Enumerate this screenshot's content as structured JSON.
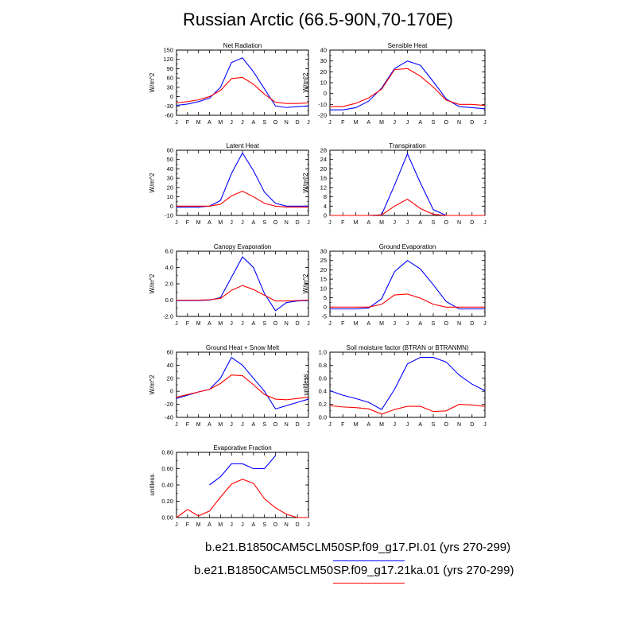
{
  "title": "Russian Arctic (66.5-90N,70-170E)",
  "colors": {
    "series1": "#0000ff",
    "series2": "#ff0000"
  },
  "legend": [
    {
      "label": "b.e21.B1850CAM5CLM50SP.f09_g17.PI.01 (yrs 270-299)",
      "color": "#0000ff"
    },
    {
      "label": "b.e21.B1850CAM5CLM50SP.f09_g17.21ka.01 (yrs 270-299)",
      "color": "#ff0000"
    }
  ],
  "chart_data": [
    {
      "type": "line",
      "title": "Net Radiation",
      "ylabel": "W/m^2",
      "x": [
        "J",
        "F",
        "M",
        "A",
        "M",
        "J",
        "J",
        "A",
        "S",
        "O",
        "N",
        "D",
        "J"
      ],
      "ylim": [
        -60,
        150
      ],
      "yticks": [
        "-60",
        "-30",
        "0",
        "30",
        "60",
        "90",
        "120",
        "150"
      ],
      "ytick_values": [
        -60,
        -30,
        0,
        30,
        60,
        90,
        120,
        150
      ],
      "yminor": 15,
      "series": [
        {
          "values": [
            -28,
            -24,
            -16,
            -5,
            30,
            110,
            125,
            80,
            25,
            -30,
            -35,
            -32,
            -30
          ]
        },
        {
          "values": [
            -20,
            -16,
            -10,
            0,
            20,
            58,
            62,
            40,
            8,
            -18,
            -22,
            -22,
            -20
          ]
        }
      ]
    },
    {
      "type": "line",
      "title": "Sensible Heat",
      "ylabel": "W/m^2",
      "x": [
        "J",
        "F",
        "M",
        "A",
        "M",
        "J",
        "J",
        "A",
        "S",
        "O",
        "N",
        "D",
        "J"
      ],
      "ylim": [
        -20,
        40
      ],
      "yticks": [
        "-20",
        "-10",
        "0",
        "10",
        "20",
        "30",
        "40"
      ],
      "ytick_values": [
        -20,
        -10,
        0,
        10,
        20,
        30,
        40
      ],
      "yminor": 5,
      "series": [
        {
          "values": [
            -15,
            -15,
            -13,
            -7,
            5,
            23,
            30,
            26,
            11,
            -5,
            -12,
            -13,
            -14
          ]
        },
        {
          "values": [
            -12,
            -12,
            -9,
            -4,
            4,
            22,
            23,
            16,
            6,
            -6,
            -10,
            -10,
            -11
          ]
        }
      ]
    },
    {
      "type": "line",
      "title": "Latent Heat",
      "ylabel": "W/m^2",
      "x": [
        "J",
        "F",
        "M",
        "A",
        "M",
        "J",
        "J",
        "A",
        "S",
        "O",
        "N",
        "D",
        "J"
      ],
      "ylim": [
        -10,
        60
      ],
      "yticks": [
        "-10",
        "0",
        "10",
        "20",
        "30",
        "40",
        "50",
        "60"
      ],
      "ytick_values": [
        -10,
        0,
        10,
        20,
        30,
        40,
        50,
        60
      ],
      "yminor": 5,
      "series": [
        {
          "values": [
            -1,
            -1,
            -1,
            0,
            6,
            35,
            57,
            38,
            15,
            3,
            0,
            0,
            0
          ]
        },
        {
          "values": [
            0,
            0,
            0,
            0,
            2,
            11,
            16,
            10,
            3,
            0,
            -1,
            -1,
            -1
          ]
        }
      ]
    },
    {
      "type": "line",
      "title": "Transpiration",
      "ylabel": "W/m^2",
      "x": [
        "J",
        "F",
        "M",
        "A",
        "M",
        "J",
        "J",
        "A",
        "S",
        "O",
        "N",
        "D",
        "J"
      ],
      "ylim": [
        0,
        28
      ],
      "yticks": [
        "0",
        "4",
        "8",
        "12",
        "16",
        "20",
        "24",
        "28"
      ],
      "ytick_values": [
        0,
        4,
        8,
        12,
        16,
        20,
        24,
        28
      ],
      "yminor": 2,
      "series": [
        {
          "values": [
            0,
            0,
            0,
            0,
            0.3,
            13,
            26.5,
            14,
            2.5,
            0,
            0,
            0,
            0
          ]
        },
        {
          "values": [
            0,
            0,
            0,
            0,
            0.2,
            4,
            7,
            3,
            0.5,
            0,
            0,
            0,
            0
          ]
        }
      ]
    },
    {
      "type": "line",
      "title": "Canopy Evaporation",
      "ylabel": "W/m^2",
      "x": [
        "J",
        "F",
        "M",
        "A",
        "M",
        "J",
        "J",
        "A",
        "S",
        "O",
        "N",
        "D",
        "J"
      ],
      "ylim": [
        -2,
        6
      ],
      "yticks": [
        "-2.0",
        "0.0",
        "2.0",
        "4.0",
        "6.0"
      ],
      "ytick_values": [
        -2,
        0,
        2,
        4,
        6
      ],
      "yminor": 1,
      "series": [
        {
          "values": [
            -0.05,
            -0.05,
            -0.05,
            0,
            0.3,
            2.8,
            5.3,
            4.0,
            0.8,
            -1.3,
            -0.3,
            -0.1,
            -0.05
          ]
        },
        {
          "values": [
            0,
            0,
            0,
            0.05,
            0.2,
            1.2,
            1.8,
            1.3,
            0.6,
            -0.1,
            -0.1,
            -0.05,
            0
          ]
        }
      ]
    },
    {
      "type": "line",
      "title": "Ground Evaporation",
      "ylabel": "W/m^2",
      "x": [
        "J",
        "F",
        "M",
        "A",
        "M",
        "J",
        "J",
        "A",
        "S",
        "O",
        "N",
        "D",
        "J"
      ],
      "ylim": [
        -5,
        30
      ],
      "yticks": [
        "-5",
        "0",
        "5",
        "10",
        "15",
        "20",
        "25",
        "30"
      ],
      "ytick_values": [
        -5,
        0,
        5,
        10,
        15,
        20,
        25,
        30
      ],
      "yminor": 2.5,
      "series": [
        {
          "values": [
            -1,
            -1,
            -1,
            -0.5,
            4.5,
            19,
            25,
            20.5,
            12,
            3,
            -1,
            -1,
            -1
          ]
        },
        {
          "values": [
            0,
            0,
            0,
            0,
            1.5,
            6.5,
            7,
            4.8,
            1.5,
            0,
            0,
            0,
            0
          ]
        }
      ]
    },
    {
      "type": "line",
      "title": "Ground Heat + Snow Melt",
      "ylabel": "W/m^2",
      "x": [
        "J",
        "F",
        "M",
        "A",
        "M",
        "J",
        "J",
        "A",
        "S",
        "O",
        "N",
        "D",
        "J"
      ],
      "ylim": [
        -40,
        60
      ],
      "yticks": [
        "-40",
        "-20",
        "0",
        "20",
        "40",
        "60"
      ],
      "ytick_values": [
        -40,
        -20,
        0,
        20,
        40,
        60
      ],
      "yminor": 10,
      "series": [
        {
          "values": [
            -11,
            -6,
            -1,
            3,
            20,
            52,
            40,
            20,
            0,
            -27,
            -22,
            -17,
            -12
          ]
        },
        {
          "values": [
            -9,
            -5,
            -1,
            3,
            12,
            25,
            24,
            10,
            -5,
            -12,
            -13,
            -11,
            -9
          ]
        }
      ]
    },
    {
      "type": "line",
      "title": "Soil moisture factor (BTRAN or BTRANMN)",
      "ylabel": "unitless",
      "x": [
        "J",
        "F",
        "M",
        "A",
        "M",
        "J",
        "J",
        "A",
        "S",
        "O",
        "N",
        "D",
        "J"
      ],
      "ylim": [
        0,
        1
      ],
      "yticks": [
        "0.0",
        "0.2",
        "0.4",
        "0.6",
        "0.8",
        "1.0"
      ],
      "ytick_values": [
        0,
        0.2,
        0.4,
        0.6,
        0.8,
        1.0
      ],
      "yminor": 0.1,
      "series": [
        {
          "values": [
            0.41,
            0.34,
            0.29,
            0.23,
            0.12,
            0.43,
            0.82,
            0.92,
            0.92,
            0.85,
            0.65,
            0.51,
            0.41
          ]
        },
        {
          "values": [
            0.18,
            0.16,
            0.15,
            0.13,
            0.05,
            0.12,
            0.17,
            0.17,
            0.09,
            0.1,
            0.2,
            0.19,
            0.17
          ]
        }
      ]
    },
    {
      "type": "line",
      "title": "Evaporative Fraction",
      "ylabel": "unitless",
      "x": [
        "J",
        "F",
        "M",
        "A",
        "M",
        "J",
        "J",
        "A",
        "S",
        "O",
        "N",
        "D",
        "J"
      ],
      "ylim": [
        0,
        0.8
      ],
      "yticks": [
        "0.00",
        "0.20",
        "0.40",
        "0.60",
        "0.80"
      ],
      "ytick_values": [
        0,
        0.2,
        0.4,
        0.6,
        0.8
      ],
      "yminor": 0.1,
      "series": [
        {
          "values": [
            null,
            null,
            null,
            0.4,
            0.5,
            0.66,
            0.66,
            0.6,
            0.6,
            0.76,
            null,
            null,
            null
          ]
        },
        {
          "values": [
            0,
            0.1,
            0.02,
            0.08,
            0.25,
            0.41,
            0.47,
            0.42,
            0.23,
            0.12,
            0.04,
            0,
            0
          ]
        }
      ]
    }
  ]
}
